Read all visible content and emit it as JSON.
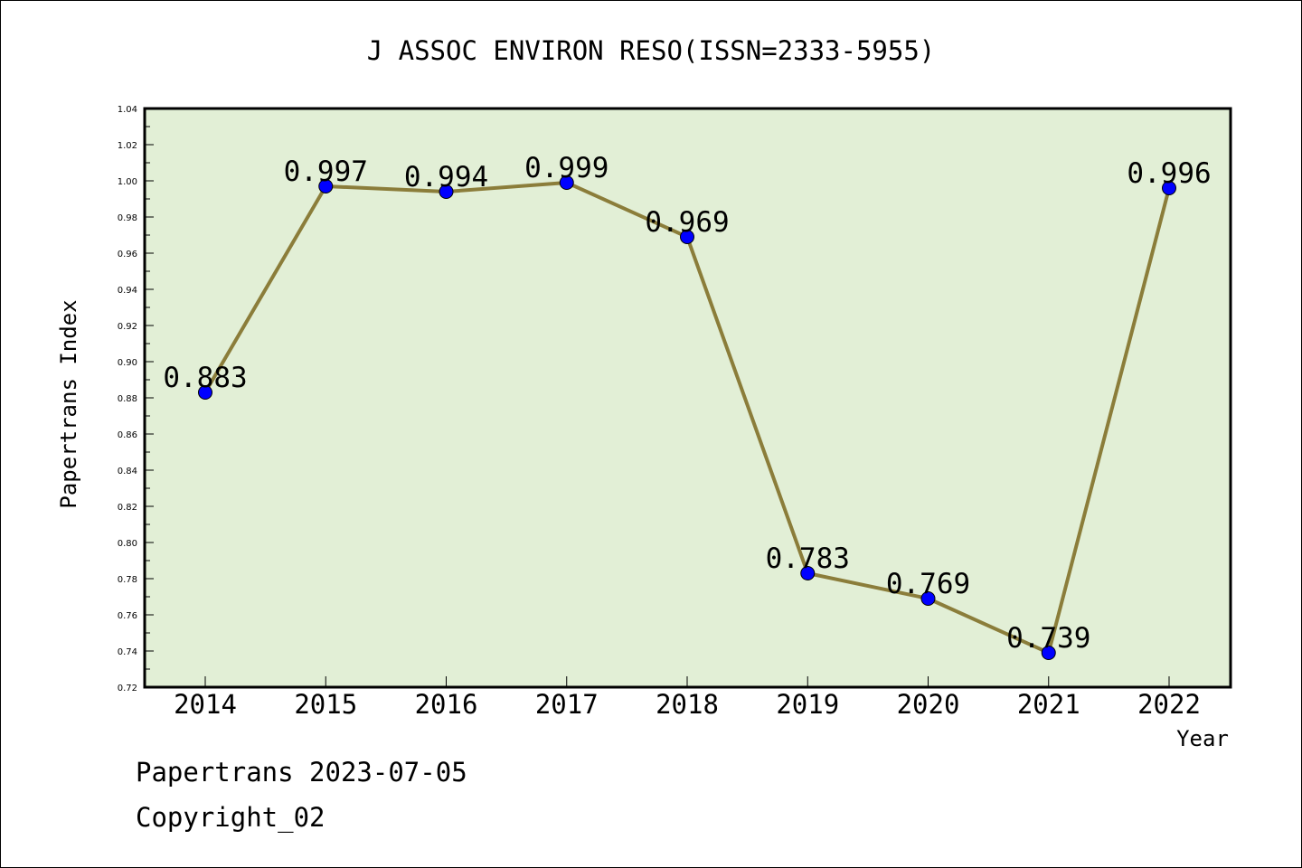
{
  "chart_data": {
    "type": "line",
    "title": "J ASSOC ENVIRON RESO(ISSN=2333-5955)",
    "xlabel": "Year",
    "ylabel": "Papertrans Index",
    "categories": [
      "2014",
      "2015",
      "2016",
      "2017",
      "2018",
      "2019",
      "2020",
      "2021",
      "2022"
    ],
    "series": [
      {
        "values": [
          0.883,
          0.997,
          0.994,
          0.999,
          0.969,
          0.783,
          0.769,
          0.739,
          0.996
        ],
        "labels": [
          "0.883",
          "0.997",
          "0.994",
          "0.999",
          "0.969",
          "0.783",
          "0.769",
          "0.739",
          "0.996"
        ]
      }
    ],
    "ylim": [
      0.72,
      1.04
    ],
    "yticks": [
      "0.72",
      "0.74",
      "0.76",
      "0.78",
      "0.80",
      "0.82",
      "0.84",
      "0.86",
      "0.88",
      "0.90",
      "0.92",
      "0.94",
      "0.96",
      "0.98",
      "1.00",
      "1.02",
      "1.04"
    ],
    "grid": false,
    "colors": {
      "plot_background": "#e2efd6",
      "line": "#8b7d3a",
      "marker": "#0000ff"
    }
  },
  "footer": {
    "line1": "Papertrans 2023-07-05",
    "line2": "Copyright_02"
  }
}
